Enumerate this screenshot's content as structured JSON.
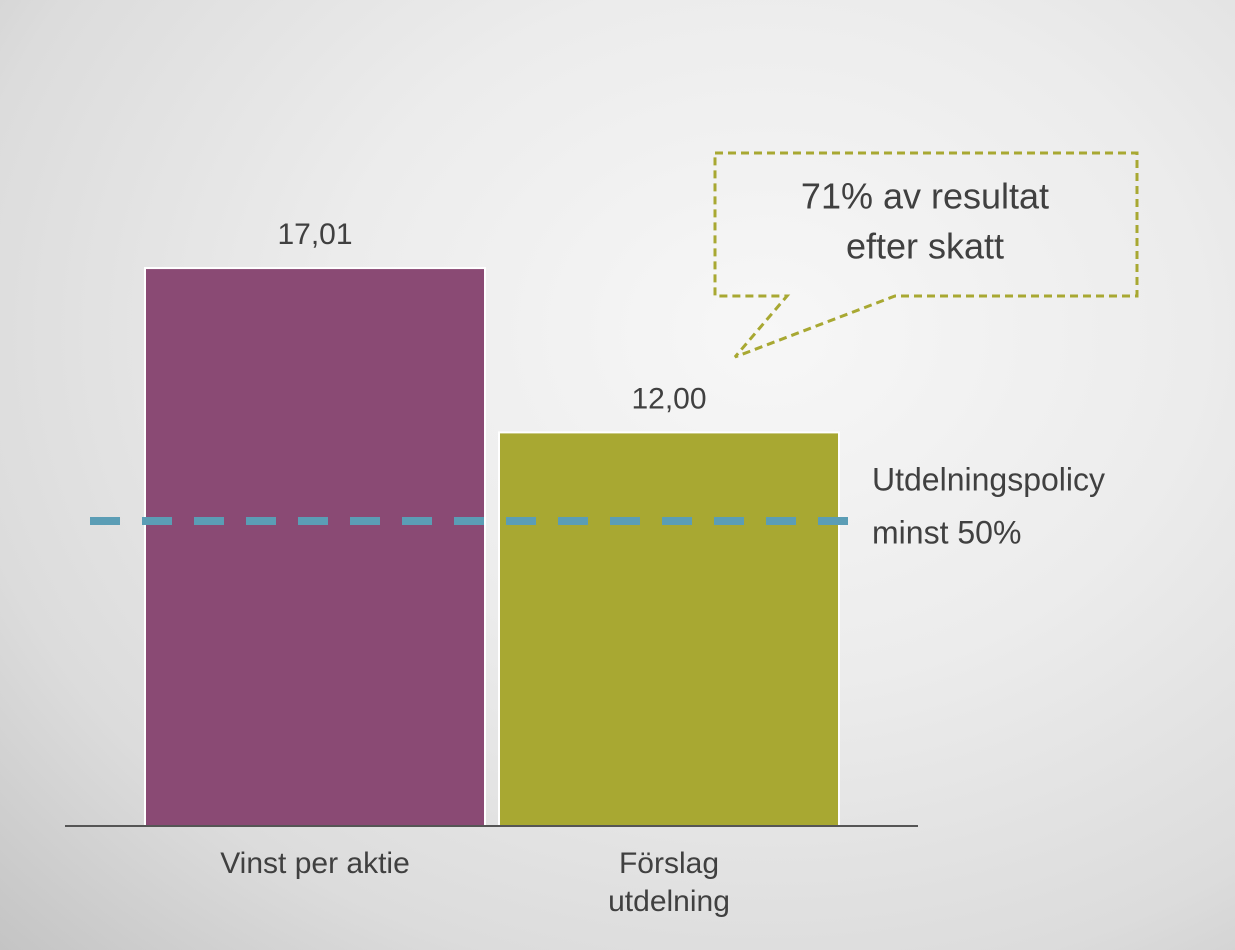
{
  "chart_data": {
    "type": "bar",
    "categories": [
      "Vinst per aktie",
      "Förslag utdelning"
    ],
    "values": [
      17.01,
      12.0
    ],
    "value_labels": [
      "17,01",
      "12,00"
    ],
    "colors": [
      "#8a4a74",
      "#a8a832"
    ],
    "ylim": [
      0,
      20
    ],
    "reference_line": {
      "value": 9.3,
      "color": "#5b9db5",
      "lines": [
        "Utdelningspolicy",
        "minst 50%"
      ]
    },
    "callout": {
      "color": "#a8a832",
      "lines": [
        "71% av resultat",
        "efter skatt"
      ]
    }
  }
}
